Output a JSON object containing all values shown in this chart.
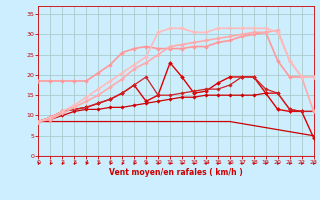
{
  "xlabel": "Vent moyen/en rafales ( km/h )",
  "xlim": [
    0,
    23
  ],
  "ylim": [
    0,
    37
  ],
  "xticks": [
    0,
    1,
    2,
    3,
    4,
    5,
    6,
    7,
    8,
    9,
    10,
    11,
    12,
    13,
    14,
    15,
    16,
    17,
    18,
    19,
    20,
    21,
    22,
    23
  ],
  "yticks": [
    0,
    5,
    10,
    15,
    20,
    25,
    30,
    35
  ],
  "bg_color": "#cceeff",
  "grid_color": "#aacccc",
  "lines": [
    {
      "x": [
        0,
        1,
        2,
        3,
        4,
        5,
        6,
        7,
        8,
        9,
        10,
        11,
        12,
        13,
        14,
        15,
        16,
        17,
        18,
        19,
        20,
        21,
        22,
        23
      ],
      "y": [
        8.5,
        8.5,
        8.5,
        8.5,
        8.5,
        8.5,
        8.5,
        8.5,
        8.5,
        8.5,
        8.5,
        8.5,
        8.5,
        8.5,
        8.5,
        8.5,
        8.5,
        8.0,
        7.5,
        7.0,
        6.5,
        6.0,
        5.5,
        5.0
      ],
      "color": "#cc0000",
      "lw": 0.9,
      "marker": null,
      "ms": 2
    },
    {
      "x": [
        0,
        1,
        2,
        3,
        4,
        5,
        6,
        7,
        8,
        9,
        10,
        11,
        12,
        13,
        14,
        15,
        16,
        17,
        18,
        19,
        20,
        21,
        22,
        23
      ],
      "y": [
        8.5,
        9.0,
        10.0,
        11.0,
        11.5,
        11.5,
        12.0,
        12.0,
        12.5,
        13.0,
        13.5,
        14.0,
        14.5,
        14.5,
        15.0,
        15.0,
        15.0,
        15.0,
        15.0,
        15.5,
        15.5,
        11.5,
        11.0,
        11.0
      ],
      "color": "#cc0000",
      "lw": 0.9,
      "marker": "D",
      "ms": 1.8
    },
    {
      "x": [
        0,
        1,
        2,
        3,
        4,
        5,
        6,
        7,
        8,
        9,
        10,
        11,
        12,
        13,
        14,
        15,
        16,
        17,
        18,
        19,
        20,
        21,
        22,
        23
      ],
      "y": [
        8.5,
        9.5,
        11.0,
        11.5,
        12.0,
        13.0,
        14.0,
        15.5,
        17.5,
        13.5,
        15.0,
        23.0,
        19.5,
        15.5,
        16.0,
        18.0,
        19.5,
        19.5,
        19.5,
        15.5,
        11.5,
        11.0,
        11.0,
        4.5
      ],
      "color": "#dd0000",
      "lw": 1.0,
      "marker": "D",
      "ms": 2.0
    },
    {
      "x": [
        0,
        1,
        2,
        3,
        4,
        5,
        6,
        7,
        8,
        9,
        10,
        11,
        12,
        13,
        14,
        15,
        16,
        17,
        18,
        19,
        20,
        21,
        22,
        23
      ],
      "y": [
        8.5,
        9.5,
        11.0,
        11.5,
        12.0,
        13.0,
        14.0,
        15.5,
        17.5,
        19.5,
        15.0,
        15.0,
        15.5,
        16.0,
        16.5,
        16.5,
        17.5,
        19.5,
        19.5,
        16.5,
        15.5,
        11.5,
        11.0,
        11.0
      ],
      "color": "#cc2222",
      "lw": 0.9,
      "marker": "D",
      "ms": 1.8
    },
    {
      "x": [
        0,
        1,
        2,
        3,
        4,
        5,
        6,
        7,
        8,
        9,
        10,
        11,
        12,
        13,
        14,
        15,
        16,
        17,
        18,
        19,
        20,
        21,
        22,
        23
      ],
      "y": [
        18.5,
        18.5,
        18.5,
        18.5,
        18.5,
        20.5,
        22.5,
        25.5,
        26.5,
        27.0,
        26.5,
        26.5,
        26.5,
        27.0,
        27.0,
        28.0,
        28.5,
        29.5,
        30.0,
        30.5,
        23.5,
        19.5,
        19.5,
        19.5
      ],
      "color": "#ff9999",
      "lw": 1.2,
      "marker": "D",
      "ms": 2.0
    },
    {
      "x": [
        0,
        1,
        2,
        3,
        4,
        5,
        6,
        7,
        8,
        9,
        10,
        11,
        12,
        13,
        14,
        15,
        16,
        17,
        18,
        19,
        20,
        21,
        22,
        23
      ],
      "y": [
        8.5,
        9.0,
        10.5,
        12.0,
        13.5,
        15.0,
        17.0,
        19.0,
        21.5,
        23.0,
        25.0,
        27.0,
        27.5,
        28.0,
        28.5,
        29.0,
        29.5,
        30.0,
        30.5,
        30.5,
        31.0,
        23.5,
        19.5,
        11.0
      ],
      "color": "#ffaaaa",
      "lw": 1.2,
      "marker": "D",
      "ms": 2.0
    },
    {
      "x": [
        0,
        1,
        2,
        3,
        4,
        5,
        6,
        7,
        8,
        9,
        10,
        11,
        12,
        13,
        14,
        15,
        16,
        17,
        18,
        19,
        20,
        21,
        22,
        23
      ],
      "y": [
        8.5,
        9.5,
        11.0,
        12.5,
        14.5,
        16.5,
        18.5,
        20.5,
        22.5,
        24.5,
        30.5,
        31.5,
        31.5,
        30.5,
        30.5,
        31.5,
        31.5,
        31.5,
        31.5,
        31.5,
        30.5,
        23.5,
        19.5,
        19.5
      ],
      "color": "#ffbbbb",
      "lw": 1.2,
      "marker": "D",
      "ms": 2.0
    }
  ],
  "arrow_color": "#cc0000",
  "xlabel_color": "#cc0000",
  "tick_color": "#cc0000",
  "spine_color": "#cc0000"
}
